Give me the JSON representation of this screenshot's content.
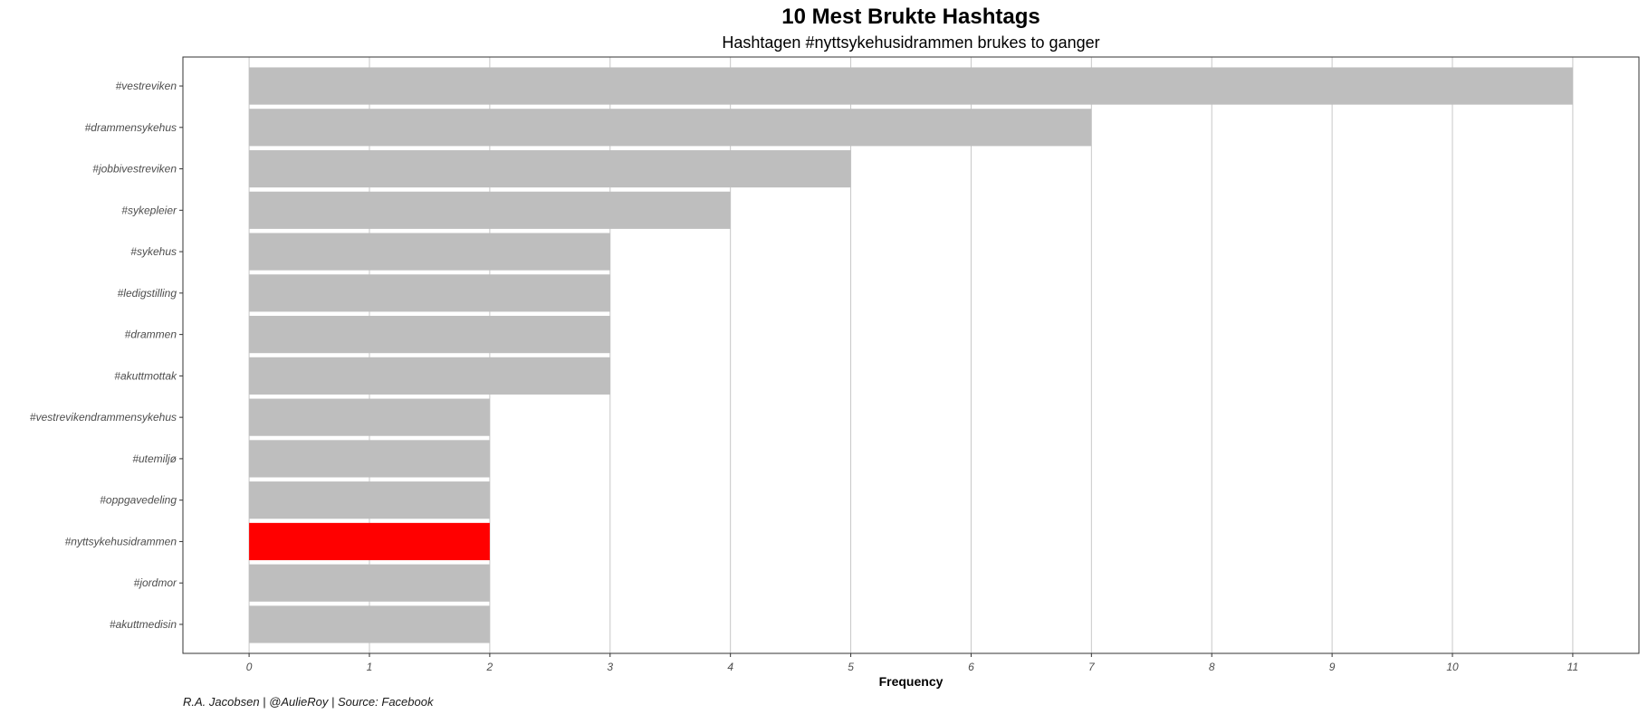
{
  "chart_data": {
    "type": "bar",
    "orientation": "horizontal",
    "title": "10 Mest Brukte Hashtags",
    "subtitle": "Hashtagen #nyttsykehusidrammen brukes to ganger",
    "xlabel": "Frequency",
    "ylabel": "",
    "caption": "R.A. Jacobsen | @AulieRoy | Source: Facebook",
    "categories": [
      "#vestreviken",
      "#drammensykehus",
      "#jobbivestreviken",
      "#sykepleier",
      "#sykehus",
      "#ledigstilling",
      "#drammen",
      "#akuttmottak",
      "#vestrevikendrammensykehus",
      "#utemiljø",
      "#oppgavedeling",
      "#nyttsykehusidrammen",
      "#jordmor",
      "#akuttmedisin"
    ],
    "values": [
      11,
      7,
      5,
      4,
      3,
      3,
      3,
      3,
      2,
      2,
      2,
      2,
      2,
      2
    ],
    "highlight": "#nyttsykehusidrammen",
    "xlim": [
      -0.55,
      11.55
    ],
    "xticks": [
      0,
      1,
      2,
      3,
      4,
      5,
      6,
      7,
      8,
      9,
      10,
      11
    ],
    "grid": "vertical major lines",
    "legend": "none",
    "colors": {
      "bar": "#bebebe",
      "highlight": "#ff0000",
      "grid": "#c8c8c8",
      "panel_border": "#333333"
    }
  }
}
